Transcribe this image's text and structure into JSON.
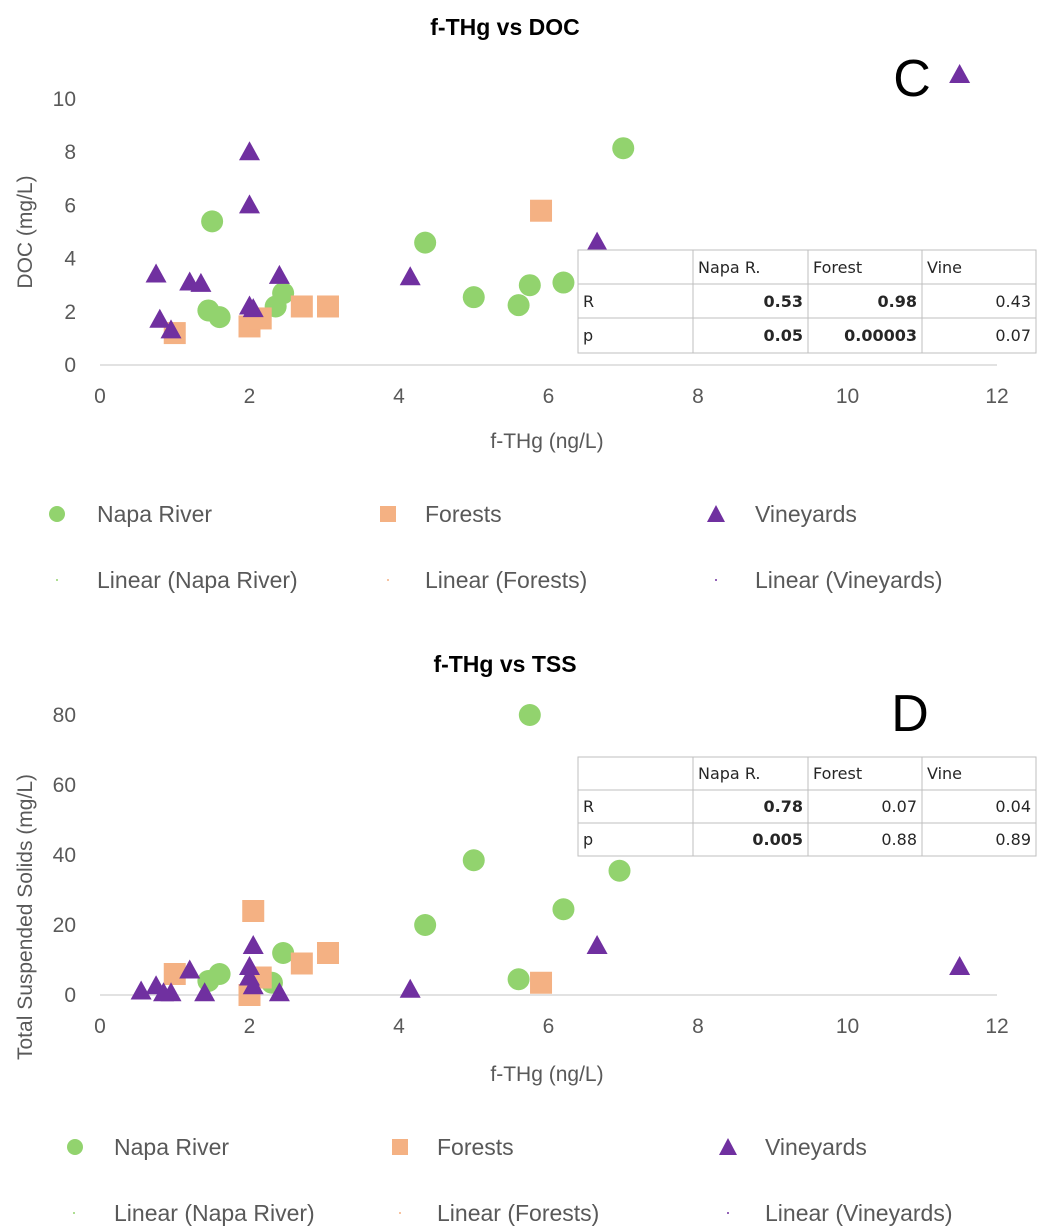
{
  "chart_data": [
    {
      "type": "scatter",
      "title": "f-THg vs DOC",
      "panel_label": "C",
      "xlabel": "f-THg (ng/L)",
      "ylabel": "DOC (mg/L)",
      "xlim": [
        0,
        12
      ],
      "ylim": [
        0,
        10
      ],
      "xticks": [
        "0",
        "2",
        "4",
        "6",
        "8",
        "10",
        "12"
      ],
      "yticks": [
        "0",
        "2",
        "4",
        "6",
        "8",
        "10"
      ],
      "series": [
        {
          "name": "Napa River",
          "marker": "circle",
          "color": "#92d36e",
          "points": [
            [
              1.5,
              5.4
            ],
            [
              1.45,
              2.05
            ],
            [
              1.6,
              1.8
            ],
            [
              2.35,
              2.2
            ],
            [
              2.45,
              2.7
            ],
            [
              4.35,
              4.6
            ],
            [
              5.0,
              2.55
            ],
            [
              5.6,
              2.25
            ],
            [
              5.75,
              3.0
            ],
            [
              6.2,
              3.1
            ],
            [
              7.0,
              8.15
            ]
          ]
        },
        {
          "name": "Forests",
          "marker": "square",
          "color": "#f4b183",
          "points": [
            [
              1.0,
              1.2
            ],
            [
              2.0,
              1.45
            ],
            [
              2.15,
              1.75
            ],
            [
              2.7,
              2.2
            ],
            [
              3.05,
              2.2
            ],
            [
              5.9,
              5.8
            ]
          ]
        },
        {
          "name": "Vineyards",
          "marker": "triangle",
          "color": "#7030a0",
          "points": [
            [
              0.75,
              3.4
            ],
            [
              0.8,
              1.7
            ],
            [
              0.95,
              1.3
            ],
            [
              1.2,
              3.1
            ],
            [
              1.35,
              3.05
            ],
            [
              2.0,
              8.0
            ],
            [
              2.0,
              6.0
            ],
            [
              2.0,
              2.2
            ],
            [
              2.05,
              2.1
            ],
            [
              2.4,
              3.35
            ],
            [
              4.15,
              3.3
            ],
            [
              6.65,
              4.6
            ],
            [
              11.5,
              10.9
            ]
          ]
        }
      ],
      "trendlines": [
        "Linear (Napa River)",
        "Linear (Forests)",
        "Linear (Vineyards)"
      ],
      "stats_table": {
        "headers": [
          "",
          "Napa R.",
          "Forest",
          "Vine"
        ],
        "rows": [
          {
            "label": "R",
            "values": [
              "0.53",
              "0.98",
              "0.43"
            ],
            "bold": [
              true,
              true,
              false
            ]
          },
          {
            "label": "p",
            "values": [
              "0.05",
              "0.00003",
              "0.07"
            ],
            "bold": [
              true,
              true,
              false
            ]
          }
        ]
      }
    },
    {
      "type": "scatter",
      "title": "f-THg vs TSS",
      "panel_label": "D",
      "xlabel": "f-THg (ng/L)",
      "ylabel": "Total Suspended Solids (mg/L)",
      "xlim": [
        0,
        12
      ],
      "ylim": [
        0,
        80
      ],
      "xticks": [
        "0",
        "2",
        "4",
        "6",
        "8",
        "10",
        "12"
      ],
      "yticks": [
        "0",
        "20",
        "40",
        "60",
        "80"
      ],
      "series": [
        {
          "name": "Napa River",
          "marker": "circle",
          "color": "#92d36e",
          "points": [
            [
              1.45,
              4.0
            ],
            [
              1.6,
              6.0
            ],
            [
              2.3,
              3.5
            ],
            [
              2.45,
              12.0
            ],
            [
              4.35,
              20.0
            ],
            [
              5.0,
              38.5
            ],
            [
              5.6,
              4.5
            ],
            [
              5.75,
              80.0
            ],
            [
              6.2,
              24.5
            ],
            [
              6.95,
              35.5
            ]
          ]
        },
        {
          "name": "Forests",
          "marker": "square",
          "color": "#f4b183",
          "points": [
            [
              1.0,
              6.0
            ],
            [
              2.0,
              0.0
            ],
            [
              2.05,
              24.0
            ],
            [
              2.15,
              5.0
            ],
            [
              2.7,
              9.0
            ],
            [
              3.05,
              12.0
            ],
            [
              5.9,
              3.5
            ]
          ]
        },
        {
          "name": "Vineyards",
          "marker": "triangle",
          "color": "#7030a0",
          "points": [
            [
              0.55,
              1.0
            ],
            [
              0.75,
              2.5
            ],
            [
              0.85,
              0.5
            ],
            [
              0.95,
              0.5
            ],
            [
              1.2,
              7.0
            ],
            [
              1.4,
              0.5
            ],
            [
              2.0,
              8.0
            ],
            [
              2.0,
              5.0
            ],
            [
              2.05,
              2.5
            ],
            [
              2.05,
              14.0
            ],
            [
              2.4,
              0.5
            ],
            [
              4.15,
              1.5
            ],
            [
              6.65,
              14.0
            ],
            [
              11.5,
              8.0
            ]
          ]
        }
      ],
      "trendlines": [
        "Linear (Napa River)",
        "Linear (Forests)",
        "Linear (Vineyards)"
      ],
      "stats_table": {
        "headers": [
          "",
          "Napa R.",
          "Forest",
          "Vine"
        ],
        "rows": [
          {
            "label": "R",
            "values": [
              "0.78",
              "0.07",
              "0.04"
            ],
            "bold": [
              true,
              false,
              false
            ]
          },
          {
            "label": "p",
            "values": [
              "0.005",
              "0.88",
              "0.89"
            ],
            "bold": [
              true,
              false,
              false
            ]
          }
        ]
      }
    }
  ],
  "legend": {
    "napa": "Napa River",
    "forests": "Forests",
    "vineyards": "Vineyards",
    "lin_napa": "Linear (Napa River)",
    "lin_forests": "Linear (Forests)",
    "lin_vineyards": "Linear (Vineyards)"
  }
}
